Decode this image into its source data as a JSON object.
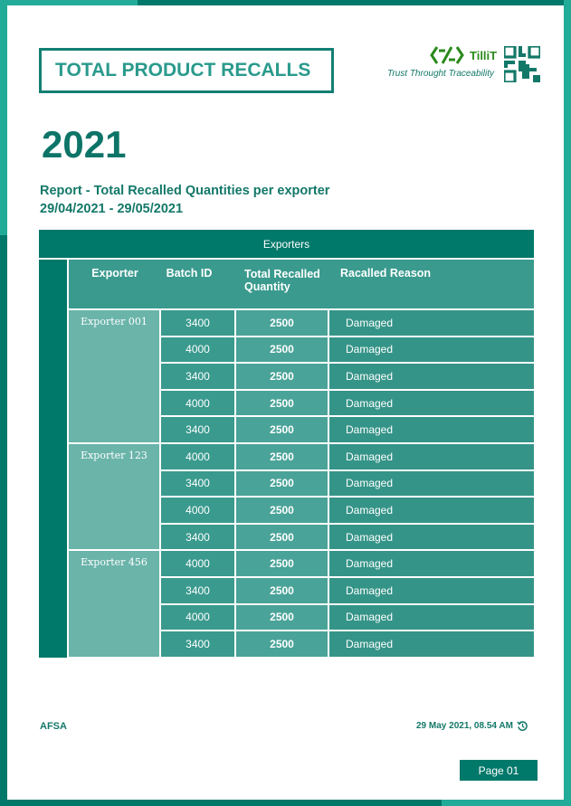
{
  "header": {
    "title": "TOTAL PRODUCT RECALLS",
    "year": "2021",
    "report_title": "Report - Total Recalled Quantities per exporter",
    "date_range": "29/04/2021 - 29/05/2021"
  },
  "brand": {
    "name": "TilliT",
    "tagline": "Trust Throught Traceability"
  },
  "table": {
    "group_header": "Exporters",
    "columns": [
      "Exporter",
      "Batch ID",
      "Total Recalled Quantity",
      "Racalled Reason"
    ],
    "groups": [
      {
        "exporter": "Exporter 001",
        "rows": [
          [
            "3400",
            "2500",
            "Damaged"
          ],
          [
            "4000",
            "2500",
            "Damaged"
          ],
          [
            "3400",
            "2500",
            "Damaged"
          ],
          [
            "4000",
            "2500",
            "Damaged"
          ],
          [
            "3400",
            "2500",
            "Damaged"
          ]
        ]
      },
      {
        "exporter": "Exporter 123",
        "rows": [
          [
            "4000",
            "2500",
            "Damaged"
          ],
          [
            "3400",
            "2500",
            "Damaged"
          ],
          [
            "4000",
            "2500",
            "Damaged"
          ],
          [
            "3400",
            "2500",
            "Damaged"
          ]
        ]
      },
      {
        "exporter": "Exporter 456",
        "rows": [
          [
            "4000",
            "2500",
            "Damaged"
          ],
          [
            "3400",
            "2500",
            "Damaged"
          ],
          [
            "4000",
            "2500",
            "Damaged"
          ],
          [
            "3400",
            "2500",
            "Damaged"
          ]
        ]
      }
    ]
  },
  "footer": {
    "org": "AFSA",
    "timestamp": "29 May 2021, 08.54 AM",
    "page": "Page 01"
  },
  "colors": {
    "dark_teal": "#00786a",
    "light_teal": "#22ab98",
    "cell": "#3a9a8e",
    "exporter_cell": "#6ab4aa"
  }
}
